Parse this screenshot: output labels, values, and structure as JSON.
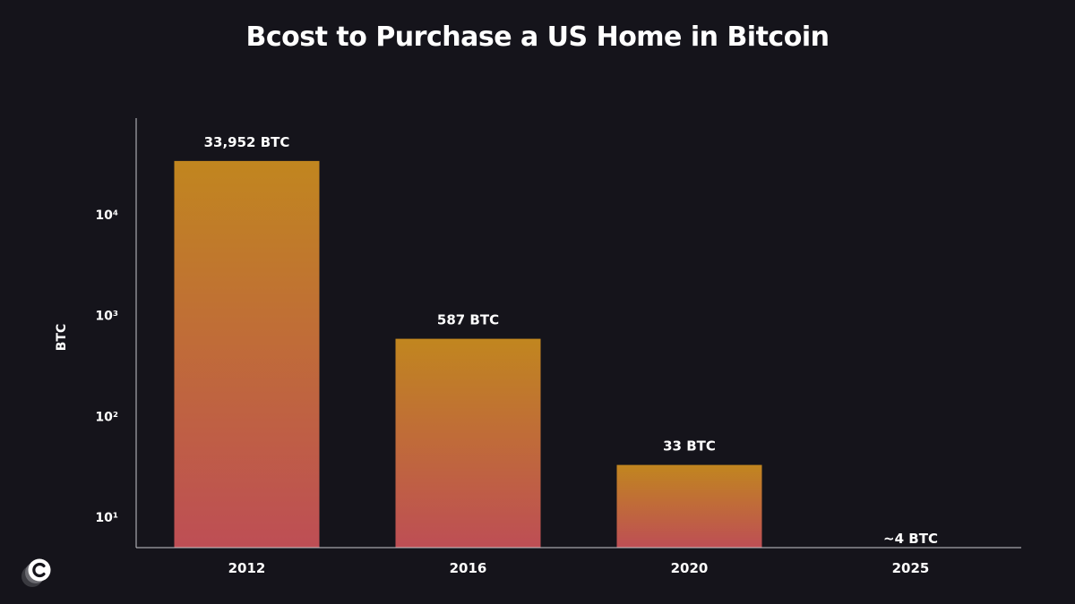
{
  "chart_data": {
    "type": "bar",
    "title": "Bcost to Purchase a US Home in Bitcoin",
    "xlabel": "",
    "ylabel": "BTC",
    "y_scale": "log",
    "ylim": [
      5,
      60000
    ],
    "yticks": [
      {
        "value": 10,
        "label": "10¹"
      },
      {
        "value": 100,
        "label": "10²"
      },
      {
        "value": 1000,
        "label": "10³"
      },
      {
        "value": 10000,
        "label": "10⁴"
      }
    ],
    "categories": [
      "2012",
      "2016",
      "2020",
      "2025"
    ],
    "values": [
      33952,
      587,
      33,
      4
    ],
    "data_labels": [
      "33,952 BTC",
      "587 BTC",
      "33 BTC",
      "~4 BTC"
    ],
    "grid": false,
    "colors": {
      "background": "#15141b",
      "bar_top": "#c1861f",
      "bar_bottom": "#be4e55",
      "axis": "#c8c8cc",
      "text": "#ffffff"
    }
  },
  "logo": {
    "icon": "c-logo-icon"
  }
}
